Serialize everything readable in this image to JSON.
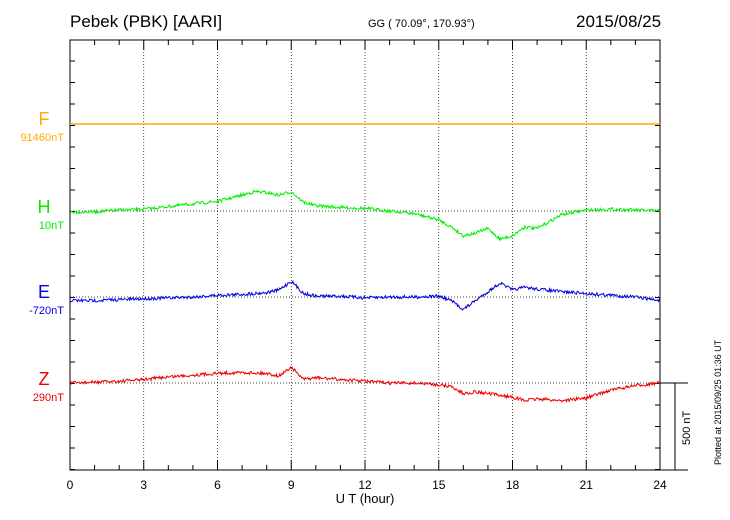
{
  "header": {
    "station": "Pebek (PBK)  [AARI]",
    "coords": "GG ( 70.09°, 170.93°)",
    "date": "2015/08/25"
  },
  "footer": {
    "plotted": "Plotted at 2015/09/25 01:36 UT",
    "scale_label": "500 nT"
  },
  "chart_data": {
    "type": "line",
    "title": "Pebek (PBK)  [AARI]",
    "xlabel": "U T (hour)",
    "ylabel": "",
    "xlim": [
      0,
      24
    ],
    "x_ticks": [
      0,
      3,
      6,
      9,
      12,
      15,
      18,
      21,
      24
    ],
    "x_tick_labels": [
      "0",
      "3",
      "6",
      "9",
      "12",
      "15",
      "18",
      "21",
      "24"
    ],
    "scale_bar_nT": 500,
    "grid": true,
    "series": [
      {
        "name": "F",
        "baseline_label": "91460nT",
        "color": "#ffaa00",
        "x": [
          0,
          3,
          6,
          9,
          12,
          15,
          18,
          21,
          24
        ],
        "values": [
          0,
          0,
          0,
          0,
          0,
          0,
          0,
          0,
          0
        ]
      },
      {
        "name": "H",
        "baseline_label": "10nT",
        "color": "#00ee00",
        "x": [
          0,
          1,
          2,
          3,
          4,
          5,
          6,
          7,
          7.5,
          8,
          8.5,
          9,
          9.5,
          10,
          11,
          12,
          13,
          14,
          15,
          15.5,
          16,
          16.5,
          17,
          17.5,
          18,
          18.5,
          19,
          20,
          21,
          22,
          23,
          24
        ],
        "values": [
          -5,
          -5,
          5,
          10,
          25,
          40,
          55,
          90,
          110,
          105,
          90,
          110,
          50,
          30,
          20,
          15,
          0,
          -15,
          -50,
          -90,
          -140,
          -125,
          -100,
          -160,
          -140,
          -90,
          -100,
          -20,
          5,
          10,
          5,
          0
        ]
      },
      {
        "name": "E",
        "baseline_label": "-720nT",
        "color": "#0000dd",
        "x": [
          0,
          1,
          2,
          3,
          4,
          5,
          6,
          7,
          8,
          8.5,
          9,
          9.5,
          10,
          11,
          12,
          13,
          14,
          15,
          15.5,
          16,
          16.5,
          17,
          17.5,
          18,
          18.5,
          19,
          20,
          21,
          22,
          23,
          24
        ],
        "values": [
          -20,
          -20,
          -15,
          -10,
          -5,
          0,
          10,
          15,
          25,
          40,
          90,
          20,
          5,
          5,
          -5,
          0,
          0,
          5,
          -20,
          -70,
          -20,
          30,
          80,
          40,
          55,
          45,
          30,
          20,
          10,
          0,
          -20
        ]
      },
      {
        "name": "Z",
        "baseline_label": "290nT",
        "color": "#ee0000",
        "x": [
          0,
          1,
          2,
          3,
          4,
          5,
          6,
          7,
          8,
          8.5,
          9,
          9.5,
          10,
          11,
          12,
          13,
          14,
          15,
          15.5,
          16,
          16.5,
          17,
          18,
          18.5,
          19,
          20,
          21,
          22,
          23,
          24
        ],
        "values": [
          0,
          5,
          10,
          20,
          35,
          45,
          55,
          60,
          55,
          40,
          90,
          20,
          30,
          20,
          10,
          0,
          0,
          -10,
          -20,
          -60,
          -50,
          -60,
          -80,
          -100,
          -90,
          -100,
          -85,
          -40,
          -15,
          0
        ]
      }
    ]
  }
}
